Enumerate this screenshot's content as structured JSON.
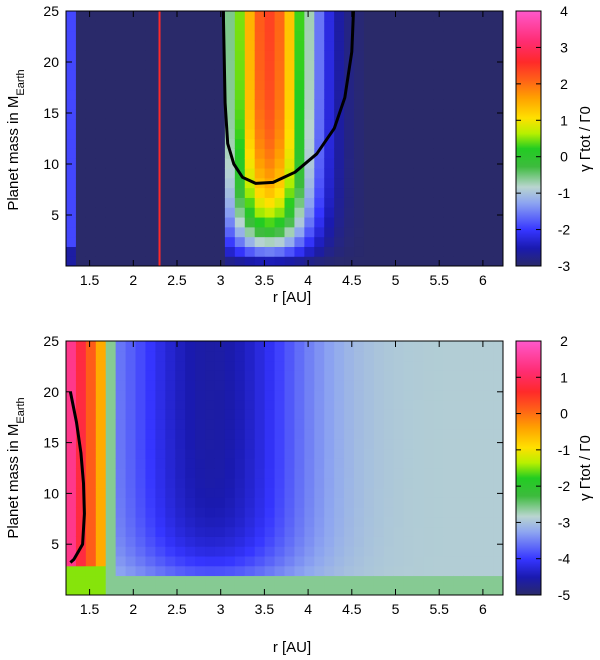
{
  "chart_data": [
    {
      "type": "heatmap",
      "title": "",
      "xlabel": "r [AU]",
      "ylabel": "Planet mass in M",
      "ylabel_sub": "Earth",
      "xlim": [
        1.23,
        6.23
      ],
      "ylim": [
        0,
        25
      ],
      "x_ticks": [
        "1.5",
        "2",
        "2.5",
        "3",
        "3.5",
        "4",
        "4.5",
        "5",
        "5.5",
        "6"
      ],
      "x_tick_values": [
        1.5,
        2,
        2.5,
        3,
        3.5,
        4,
        4.5,
        5,
        5.5,
        6
      ],
      "y_ticks": [
        "5",
        "10",
        "15",
        "20",
        "25"
      ],
      "y_tick_values": [
        5,
        10,
        15,
        20,
        25
      ],
      "colorbar": {
        "label": "γ Γtot / Γ0",
        "min": -3,
        "max": 4,
        "ticks": [
          "4",
          "3",
          "2",
          "1",
          "0",
          "-1",
          "-2",
          "-3"
        ],
        "tick_values": [
          4,
          3,
          2,
          1,
          0,
          -1,
          -2,
          -3
        ]
      },
      "vertical_line": {
        "x": 2.3,
        "color": "#ff2a2a"
      },
      "zero_contour": {
        "left": [
          [
            3.03,
            25
          ],
          [
            3.05,
            16
          ],
          [
            3.08,
            12
          ],
          [
            3.15,
            10
          ],
          [
            3.25,
            8.7
          ],
          [
            3.4,
            8.1
          ]
        ],
        "right": [
          [
            3.4,
            8.1
          ],
          [
            3.6,
            8.2
          ],
          [
            3.85,
            9.2
          ],
          [
            4.1,
            11
          ],
          [
            4.3,
            13.5
          ],
          [
            4.42,
            16.5
          ],
          [
            4.5,
            21
          ],
          [
            4.52,
            25
          ]
        ]
      }
    },
    {
      "type": "heatmap",
      "title": "",
      "xlabel": "r [AU]",
      "ylabel": "Planet mass in M",
      "ylabel_sub": "Earth",
      "xlim": [
        1.23,
        6.23
      ],
      "ylim": [
        0,
        25
      ],
      "x_ticks": [
        "1.5",
        "2",
        "2.5",
        "3",
        "3.5",
        "4",
        "4.5",
        "5",
        "5.5",
        "6"
      ],
      "x_tick_values": [
        1.5,
        2,
        2.5,
        3,
        3.5,
        4,
        4.5,
        5,
        5.5,
        6
      ],
      "y_ticks": [
        "5",
        "10",
        "15",
        "20",
        "25"
      ],
      "y_tick_values": [
        5,
        10,
        15,
        20,
        25
      ],
      "colorbar": {
        "label": "γ Γtot / Γ0",
        "min": -5,
        "max": 2,
        "ticks": [
          "2",
          "1",
          "0",
          "-1",
          "-2",
          "-3",
          "-4",
          "-5"
        ],
        "tick_values": [
          2,
          1,
          0,
          -1,
          -2,
          -3,
          -4,
          -5
        ]
      },
      "zero_contour": {
        "left": [
          [
            1.28,
            20
          ],
          [
            1.35,
            17
          ],
          [
            1.4,
            14
          ],
          [
            1.43,
            11
          ],
          [
            1.44,
            8
          ],
          [
            1.42,
            5
          ],
          [
            1.32,
            3.5
          ],
          [
            1.28,
            3.2
          ]
        ]
      }
    }
  ]
}
